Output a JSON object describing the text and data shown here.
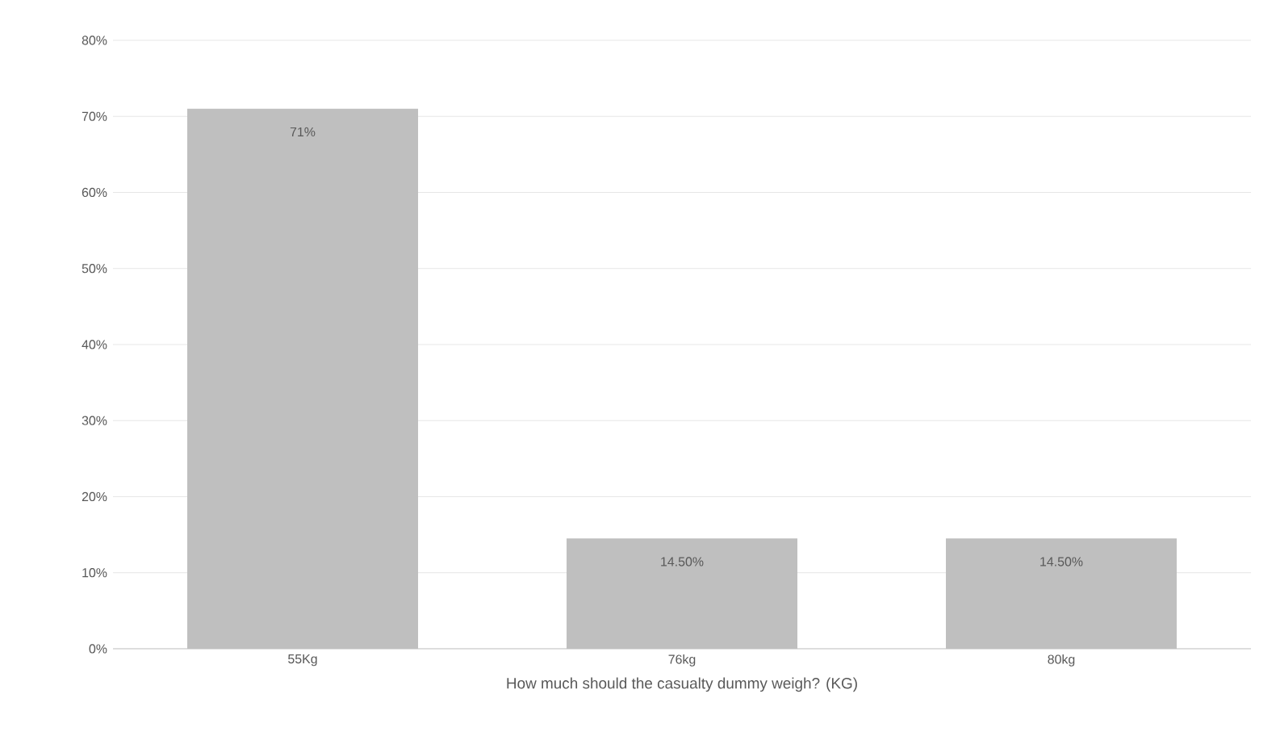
{
  "chart_data": {
    "type": "bar",
    "xlabel": "How much should the casualty dummy weigh? (KG)",
    "categories": [
      "55Kg",
      "76kg",
      "80kg"
    ],
    "values": [
      71,
      14.5,
      14.5
    ],
    "value_labels": [
      "71%",
      "14.50%",
      "14.50%"
    ],
    "color": "#bfbfbf",
    "ylim": [
      0,
      80
    ],
    "yticks": [
      {
        "value": 0,
        "label": "0%"
      },
      {
        "value": 10,
        "label": "10%"
      },
      {
        "value": 20,
        "label": "20%"
      },
      {
        "value": 30,
        "label": "30%"
      },
      {
        "value": 40,
        "label": "40%"
      },
      {
        "value": 50,
        "label": "50%"
      },
      {
        "value": 60,
        "label": "60%"
      },
      {
        "value": 70,
        "label": "70%"
      },
      {
        "value": 80,
        "label": "80%"
      }
    ],
    "grid": "y"
  }
}
